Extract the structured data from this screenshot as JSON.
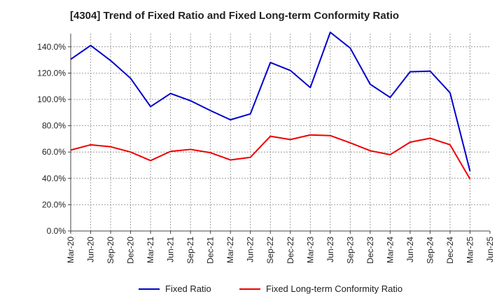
{
  "chart_data": {
    "type": "line",
    "title": "[4304]  Trend of Fixed Ratio and Fixed Long-term Conformity Ratio",
    "x_ticks": [
      "Mar-20",
      "Jun-20",
      "Sep-20",
      "Dec-20",
      "Mar-21",
      "Jun-21",
      "Sep-21",
      "Dec-21",
      "Mar-22",
      "Jun-22",
      "Sep-22",
      "Dec-22",
      "Mar-23",
      "Jun-23",
      "Sep-23",
      "Dec-23",
      "Mar-24",
      "Jun-24",
      "Sep-24",
      "Dec-24",
      "Mar-25",
      "Jun-25"
    ],
    "x": [
      "Mar-20",
      "Jun-20",
      "Sep-20",
      "Dec-20",
      "Mar-21",
      "Jun-21",
      "Sep-21",
      "Dec-21",
      "Mar-22",
      "Jun-22",
      "Sep-22",
      "Dec-22",
      "Mar-23",
      "Jun-23",
      "Sep-23",
      "Dec-23",
      "Mar-24",
      "Jun-24",
      "Sep-24",
      "Dec-24",
      "Mar-25"
    ],
    "y_ticks": [
      0,
      20,
      40,
      60,
      80,
      100,
      120,
      140
    ],
    "y_tick_labels": [
      "0.0%",
      "20.0%",
      "40.0%",
      "60.0%",
      "80.0%",
      "100.0%",
      "120.0%",
      "140.0%"
    ],
    "ylim": [
      0,
      150
    ],
    "grid": true,
    "legend_position": "bottom",
    "series": [
      {
        "name": "Fixed Ratio",
        "color": "#0000cc",
        "values": [
          130.5,
          141.0,
          129.5,
          116.0,
          94.5,
          104.5,
          99.0,
          91.5,
          84.5,
          89.0,
          128.0,
          122.0,
          109.0,
          151.0,
          139.0,
          111.5,
          101.5,
          121.0,
          121.5,
          105.0,
          45.5
        ]
      },
      {
        "name": "Fixed Long-term Conformity Ratio",
        "color": "#ee0000",
        "values": [
          61.5,
          65.5,
          64.0,
          60.0,
          53.5,
          60.5,
          62.0,
          59.5,
          54.0,
          56.0,
          72.0,
          69.5,
          73.0,
          72.5,
          67.0,
          61.0,
          58.0,
          67.5,
          70.5,
          65.5,
          39.5
        ]
      }
    ]
  }
}
